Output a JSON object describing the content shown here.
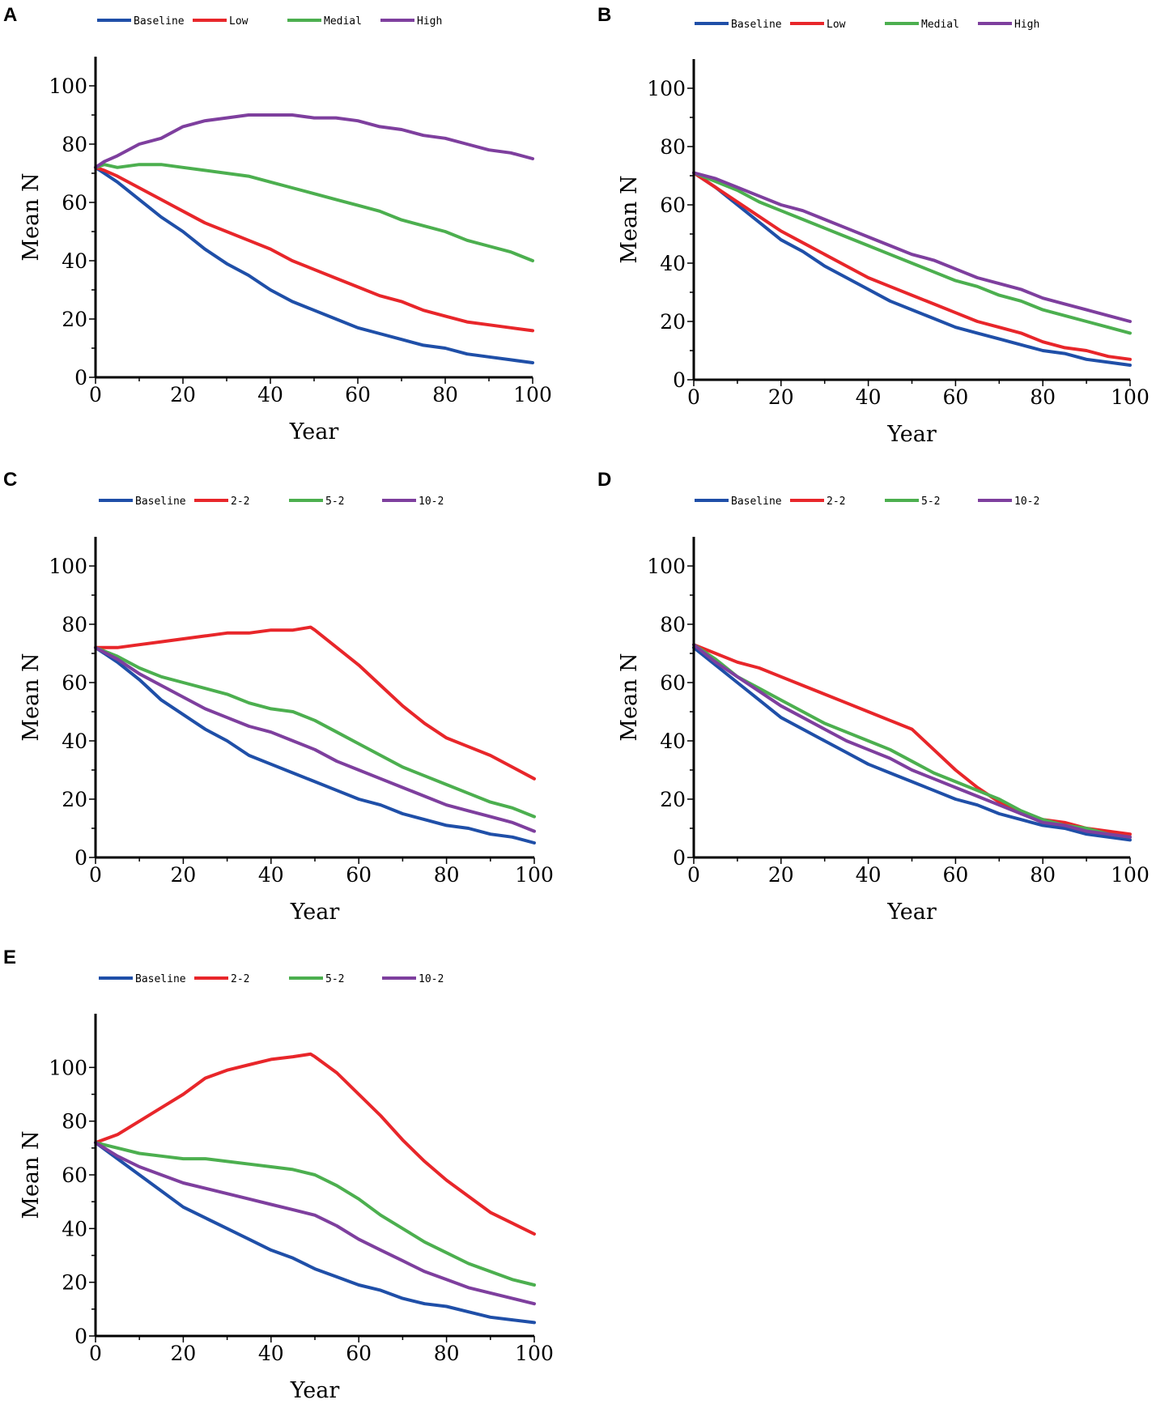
{
  "chart_data": [
    {
      "panel": "A",
      "type": "line",
      "title": "",
      "xlabel": "Year",
      "ylabel": "Mean N",
      "xlim": [
        0,
        100
      ],
      "ylim": [
        0,
        110
      ],
      "xticks": [
        "0",
        "20",
        "40",
        "60",
        "80",
        "100"
      ],
      "yticks": [
        "0",
        "20",
        "40",
        "60",
        "80",
        "100"
      ],
      "legend_position": "top",
      "series": [
        {
          "name": "Baseline",
          "color": "#1f4fa8",
          "x": [
            0,
            2,
            5,
            10,
            15,
            20,
            25,
            30,
            35,
            40,
            45,
            50,
            55,
            60,
            65,
            70,
            75,
            80,
            85,
            90,
            95,
            100
          ],
          "y": [
            72,
            70,
            67,
            61,
            55,
            50,
            44,
            39,
            35,
            30,
            26,
            23,
            20,
            17,
            15,
            13,
            11,
            10,
            8,
            7,
            6,
            5
          ]
        },
        {
          "name": "Low",
          "color": "#e8262a",
          "x": [
            0,
            2,
            5,
            10,
            15,
            20,
            25,
            30,
            35,
            40,
            45,
            50,
            55,
            60,
            65,
            70,
            75,
            80,
            85,
            90,
            95,
            100
          ],
          "y": [
            72,
            71,
            69,
            65,
            61,
            57,
            53,
            50,
            47,
            44,
            40,
            37,
            34,
            31,
            28,
            26,
            23,
            21,
            19,
            18,
            17,
            16
          ]
        },
        {
          "name": "Medial",
          "color": "#4caf4f",
          "x": [
            0,
            2,
            5,
            10,
            15,
            20,
            25,
            30,
            35,
            40,
            45,
            50,
            55,
            60,
            65,
            70,
            75,
            80,
            85,
            90,
            95,
            100
          ],
          "y": [
            72,
            73,
            72,
            73,
            73,
            72,
            71,
            70,
            69,
            67,
            65,
            63,
            61,
            59,
            57,
            54,
            52,
            50,
            47,
            45,
            43,
            40
          ]
        },
        {
          "name": "High",
          "color": "#7e3f9e",
          "x": [
            0,
            2,
            5,
            10,
            15,
            20,
            25,
            30,
            35,
            40,
            45,
            50,
            55,
            60,
            65,
            70,
            75,
            80,
            85,
            90,
            95,
            100
          ],
          "y": [
            72,
            74,
            76,
            80,
            82,
            86,
            88,
            89,
            90,
            90,
            90,
            89,
            89,
            88,
            86,
            85,
            83,
            82,
            80,
            78,
            77,
            75
          ]
        }
      ]
    },
    {
      "panel": "B",
      "type": "line",
      "title": "",
      "xlabel": "Year",
      "ylabel": "Mean N",
      "xlim": [
        0,
        100
      ],
      "ylim": [
        0,
        110
      ],
      "xticks": [
        "0",
        "20",
        "40",
        "60",
        "80",
        "100"
      ],
      "yticks": [
        "0",
        "20",
        "40",
        "60",
        "80",
        "100"
      ],
      "legend_position": "top",
      "series": [
        {
          "name": "Baseline",
          "color": "#1f4fa8",
          "x": [
            0,
            5,
            10,
            15,
            20,
            25,
            30,
            35,
            40,
            45,
            50,
            55,
            60,
            65,
            70,
            75,
            80,
            85,
            90,
            95,
            100
          ],
          "y": [
            71,
            66,
            60,
            54,
            48,
            44,
            39,
            35,
            31,
            27,
            24,
            21,
            18,
            16,
            14,
            12,
            10,
            9,
            7,
            6,
            5
          ]
        },
        {
          "name": "Low",
          "color": "#e8262a",
          "x": [
            0,
            5,
            10,
            15,
            20,
            25,
            30,
            35,
            40,
            45,
            50,
            55,
            60,
            65,
            70,
            75,
            80,
            85,
            90,
            95,
            100
          ],
          "y": [
            71,
            66,
            61,
            56,
            51,
            47,
            43,
            39,
            35,
            32,
            29,
            26,
            23,
            20,
            18,
            16,
            13,
            11,
            10,
            8,
            7
          ]
        },
        {
          "name": "Medial",
          "color": "#4caf4f",
          "x": [
            0,
            5,
            10,
            15,
            20,
            25,
            30,
            35,
            40,
            45,
            50,
            55,
            60,
            65,
            70,
            75,
            80,
            85,
            90,
            95,
            100
          ],
          "y": [
            71,
            68,
            65,
            61,
            58,
            55,
            52,
            49,
            46,
            43,
            40,
            37,
            34,
            32,
            29,
            27,
            24,
            22,
            20,
            18,
            16
          ]
        },
        {
          "name": "High",
          "color": "#7e3f9e",
          "x": [
            0,
            5,
            10,
            15,
            20,
            25,
            30,
            35,
            40,
            45,
            50,
            55,
            60,
            65,
            70,
            75,
            80,
            85,
            90,
            95,
            100
          ],
          "y": [
            71,
            69,
            66,
            63,
            60,
            58,
            55,
            52,
            49,
            46,
            43,
            41,
            38,
            35,
            33,
            31,
            28,
            26,
            24,
            22,
            20
          ]
        }
      ]
    },
    {
      "panel": "C",
      "type": "line",
      "title": "",
      "xlabel": "Year",
      "ylabel": "Mean N",
      "xlim": [
        0,
        100
      ],
      "ylim": [
        0,
        110
      ],
      "xticks": [
        "0",
        "20",
        "40",
        "60",
        "80",
        "100"
      ],
      "yticks": [
        "0",
        "20",
        "40",
        "60",
        "80",
        "100"
      ],
      "legend_position": "top",
      "series": [
        {
          "name": "Baseline",
          "color": "#1f4fa8",
          "x": [
            0,
            5,
            10,
            15,
            20,
            25,
            30,
            35,
            40,
            45,
            50,
            55,
            60,
            65,
            70,
            75,
            80,
            85,
            90,
            95,
            100
          ],
          "y": [
            72,
            67,
            61,
            54,
            49,
            44,
            40,
            35,
            32,
            29,
            26,
            23,
            20,
            18,
            15,
            13,
            11,
            10,
            8,
            7,
            5
          ]
        },
        {
          "name": "2-2",
          "color": "#e8262a",
          "x": [
            0,
            5,
            10,
            15,
            20,
            25,
            30,
            35,
            40,
            45,
            49,
            50,
            55,
            60,
            65,
            70,
            75,
            80,
            85,
            90,
            95,
            100
          ],
          "y": [
            72,
            72,
            73,
            74,
            75,
            76,
            77,
            77,
            78,
            78,
            79,
            78,
            72,
            66,
            59,
            52,
            46,
            41,
            38,
            35,
            31,
            27
          ]
        },
        {
          "name": "5-2",
          "color": "#4caf4f",
          "x": [
            0,
            5,
            10,
            15,
            20,
            25,
            30,
            35,
            40,
            45,
            50,
            55,
            60,
            65,
            70,
            75,
            80,
            85,
            90,
            95,
            100
          ],
          "y": [
            72,
            69,
            65,
            62,
            60,
            58,
            56,
            53,
            51,
            50,
            47,
            43,
            39,
            35,
            31,
            28,
            25,
            22,
            19,
            17,
            14
          ]
        },
        {
          "name": "10-2",
          "color": "#7e3f9e",
          "x": [
            0,
            5,
            10,
            15,
            20,
            25,
            30,
            35,
            40,
            45,
            50,
            55,
            60,
            65,
            70,
            75,
            80,
            85,
            90,
            95,
            100
          ],
          "y": [
            72,
            68,
            63,
            59,
            55,
            51,
            48,
            45,
            43,
            40,
            37,
            33,
            30,
            27,
            24,
            21,
            18,
            16,
            14,
            12,
            9
          ]
        }
      ]
    },
    {
      "panel": "D",
      "type": "line",
      "title": "",
      "xlabel": "Year",
      "ylabel": "Mean N",
      "xlim": [
        0,
        100
      ],
      "ylim": [
        0,
        110
      ],
      "xticks": [
        "0",
        "20",
        "40",
        "60",
        "80",
        "100"
      ],
      "yticks": [
        "0",
        "20",
        "40",
        "60",
        "80",
        "100"
      ],
      "legend_position": "top",
      "series": [
        {
          "name": "Baseline",
          "color": "#1f4fa8",
          "x": [
            0,
            5,
            10,
            15,
            20,
            25,
            30,
            35,
            40,
            45,
            50,
            55,
            60,
            65,
            70,
            75,
            80,
            85,
            90,
            95,
            100
          ],
          "y": [
            72,
            66,
            60,
            54,
            48,
            44,
            40,
            36,
            32,
            29,
            26,
            23,
            20,
            18,
            15,
            13,
            11,
            10,
            8,
            7,
            6
          ]
        },
        {
          "name": "2-2",
          "color": "#e8262a",
          "x": [
            0,
            5,
            10,
            15,
            20,
            25,
            30,
            35,
            40,
            45,
            50,
            55,
            60,
            65,
            70,
            75,
            80,
            85,
            90,
            95,
            100
          ],
          "y": [
            73,
            70,
            67,
            65,
            62,
            59,
            56,
            53,
            50,
            47,
            44,
            37,
            30,
            24,
            19,
            15,
            13,
            12,
            10,
            9,
            8
          ]
        },
        {
          "name": "5-2",
          "color": "#4caf4f",
          "x": [
            0,
            5,
            10,
            15,
            20,
            25,
            30,
            35,
            40,
            45,
            50,
            55,
            60,
            65,
            70,
            75,
            80,
            85,
            90,
            95,
            100
          ],
          "y": [
            73,
            68,
            62,
            58,
            54,
            50,
            46,
            43,
            40,
            37,
            33,
            29,
            26,
            23,
            20,
            16,
            13,
            11,
            10,
            8,
            7
          ]
        },
        {
          "name": "10-2",
          "color": "#7e3f9e",
          "x": [
            0,
            5,
            10,
            15,
            20,
            25,
            30,
            35,
            40,
            45,
            50,
            55,
            60,
            65,
            70,
            75,
            80,
            85,
            90,
            95,
            100
          ],
          "y": [
            73,
            67,
            62,
            57,
            52,
            48,
            44,
            40,
            37,
            34,
            30,
            27,
            24,
            21,
            18,
            15,
            12,
            11,
            9,
            8,
            7
          ]
        }
      ]
    },
    {
      "panel": "E",
      "type": "line",
      "title": "",
      "xlabel": "Year",
      "ylabel": "Mean N",
      "xlim": [
        0,
        100
      ],
      "ylim": [
        0,
        120
      ],
      "xticks": [
        "0",
        "20",
        "40",
        "60",
        "80",
        "100"
      ],
      "yticks": [
        "0",
        "20",
        "40",
        "60",
        "80",
        "100"
      ],
      "legend_position": "top",
      "series": [
        {
          "name": "Baseline",
          "color": "#1f4fa8",
          "x": [
            0,
            5,
            10,
            15,
            20,
            25,
            30,
            35,
            40,
            45,
            50,
            55,
            60,
            65,
            70,
            75,
            80,
            85,
            90,
            95,
            100
          ],
          "y": [
            72,
            66,
            60,
            54,
            48,
            44,
            40,
            36,
            32,
            29,
            25,
            22,
            19,
            17,
            14,
            12,
            11,
            9,
            7,
            6,
            5
          ]
        },
        {
          "name": "2-2",
          "color": "#e8262a",
          "x": [
            0,
            5,
            10,
            15,
            20,
            25,
            30,
            35,
            40,
            45,
            49,
            50,
            55,
            60,
            65,
            70,
            75,
            80,
            85,
            90,
            95,
            100
          ],
          "y": [
            72,
            75,
            80,
            85,
            90,
            96,
            99,
            101,
            103,
            104,
            105,
            104,
            98,
            90,
            82,
            73,
            65,
            58,
            52,
            46,
            42,
            38
          ]
        },
        {
          "name": "5-2",
          "color": "#4caf4f",
          "x": [
            0,
            5,
            10,
            15,
            20,
            25,
            30,
            35,
            40,
            45,
            50,
            55,
            60,
            65,
            70,
            75,
            80,
            85,
            90,
            95,
            100
          ],
          "y": [
            72,
            70,
            68,
            67,
            66,
            66,
            65,
            64,
            63,
            62,
            60,
            56,
            51,
            45,
            40,
            35,
            31,
            27,
            24,
            21,
            19
          ]
        },
        {
          "name": "10-2",
          "color": "#7e3f9e",
          "x": [
            0,
            5,
            10,
            15,
            20,
            25,
            30,
            35,
            40,
            45,
            50,
            55,
            60,
            65,
            70,
            75,
            80,
            85,
            90,
            95,
            100
          ],
          "y": [
            72,
            67,
            63,
            60,
            57,
            55,
            53,
            51,
            49,
            47,
            45,
            41,
            36,
            32,
            28,
            24,
            21,
            18,
            16,
            14,
            12
          ]
        }
      ]
    }
  ]
}
